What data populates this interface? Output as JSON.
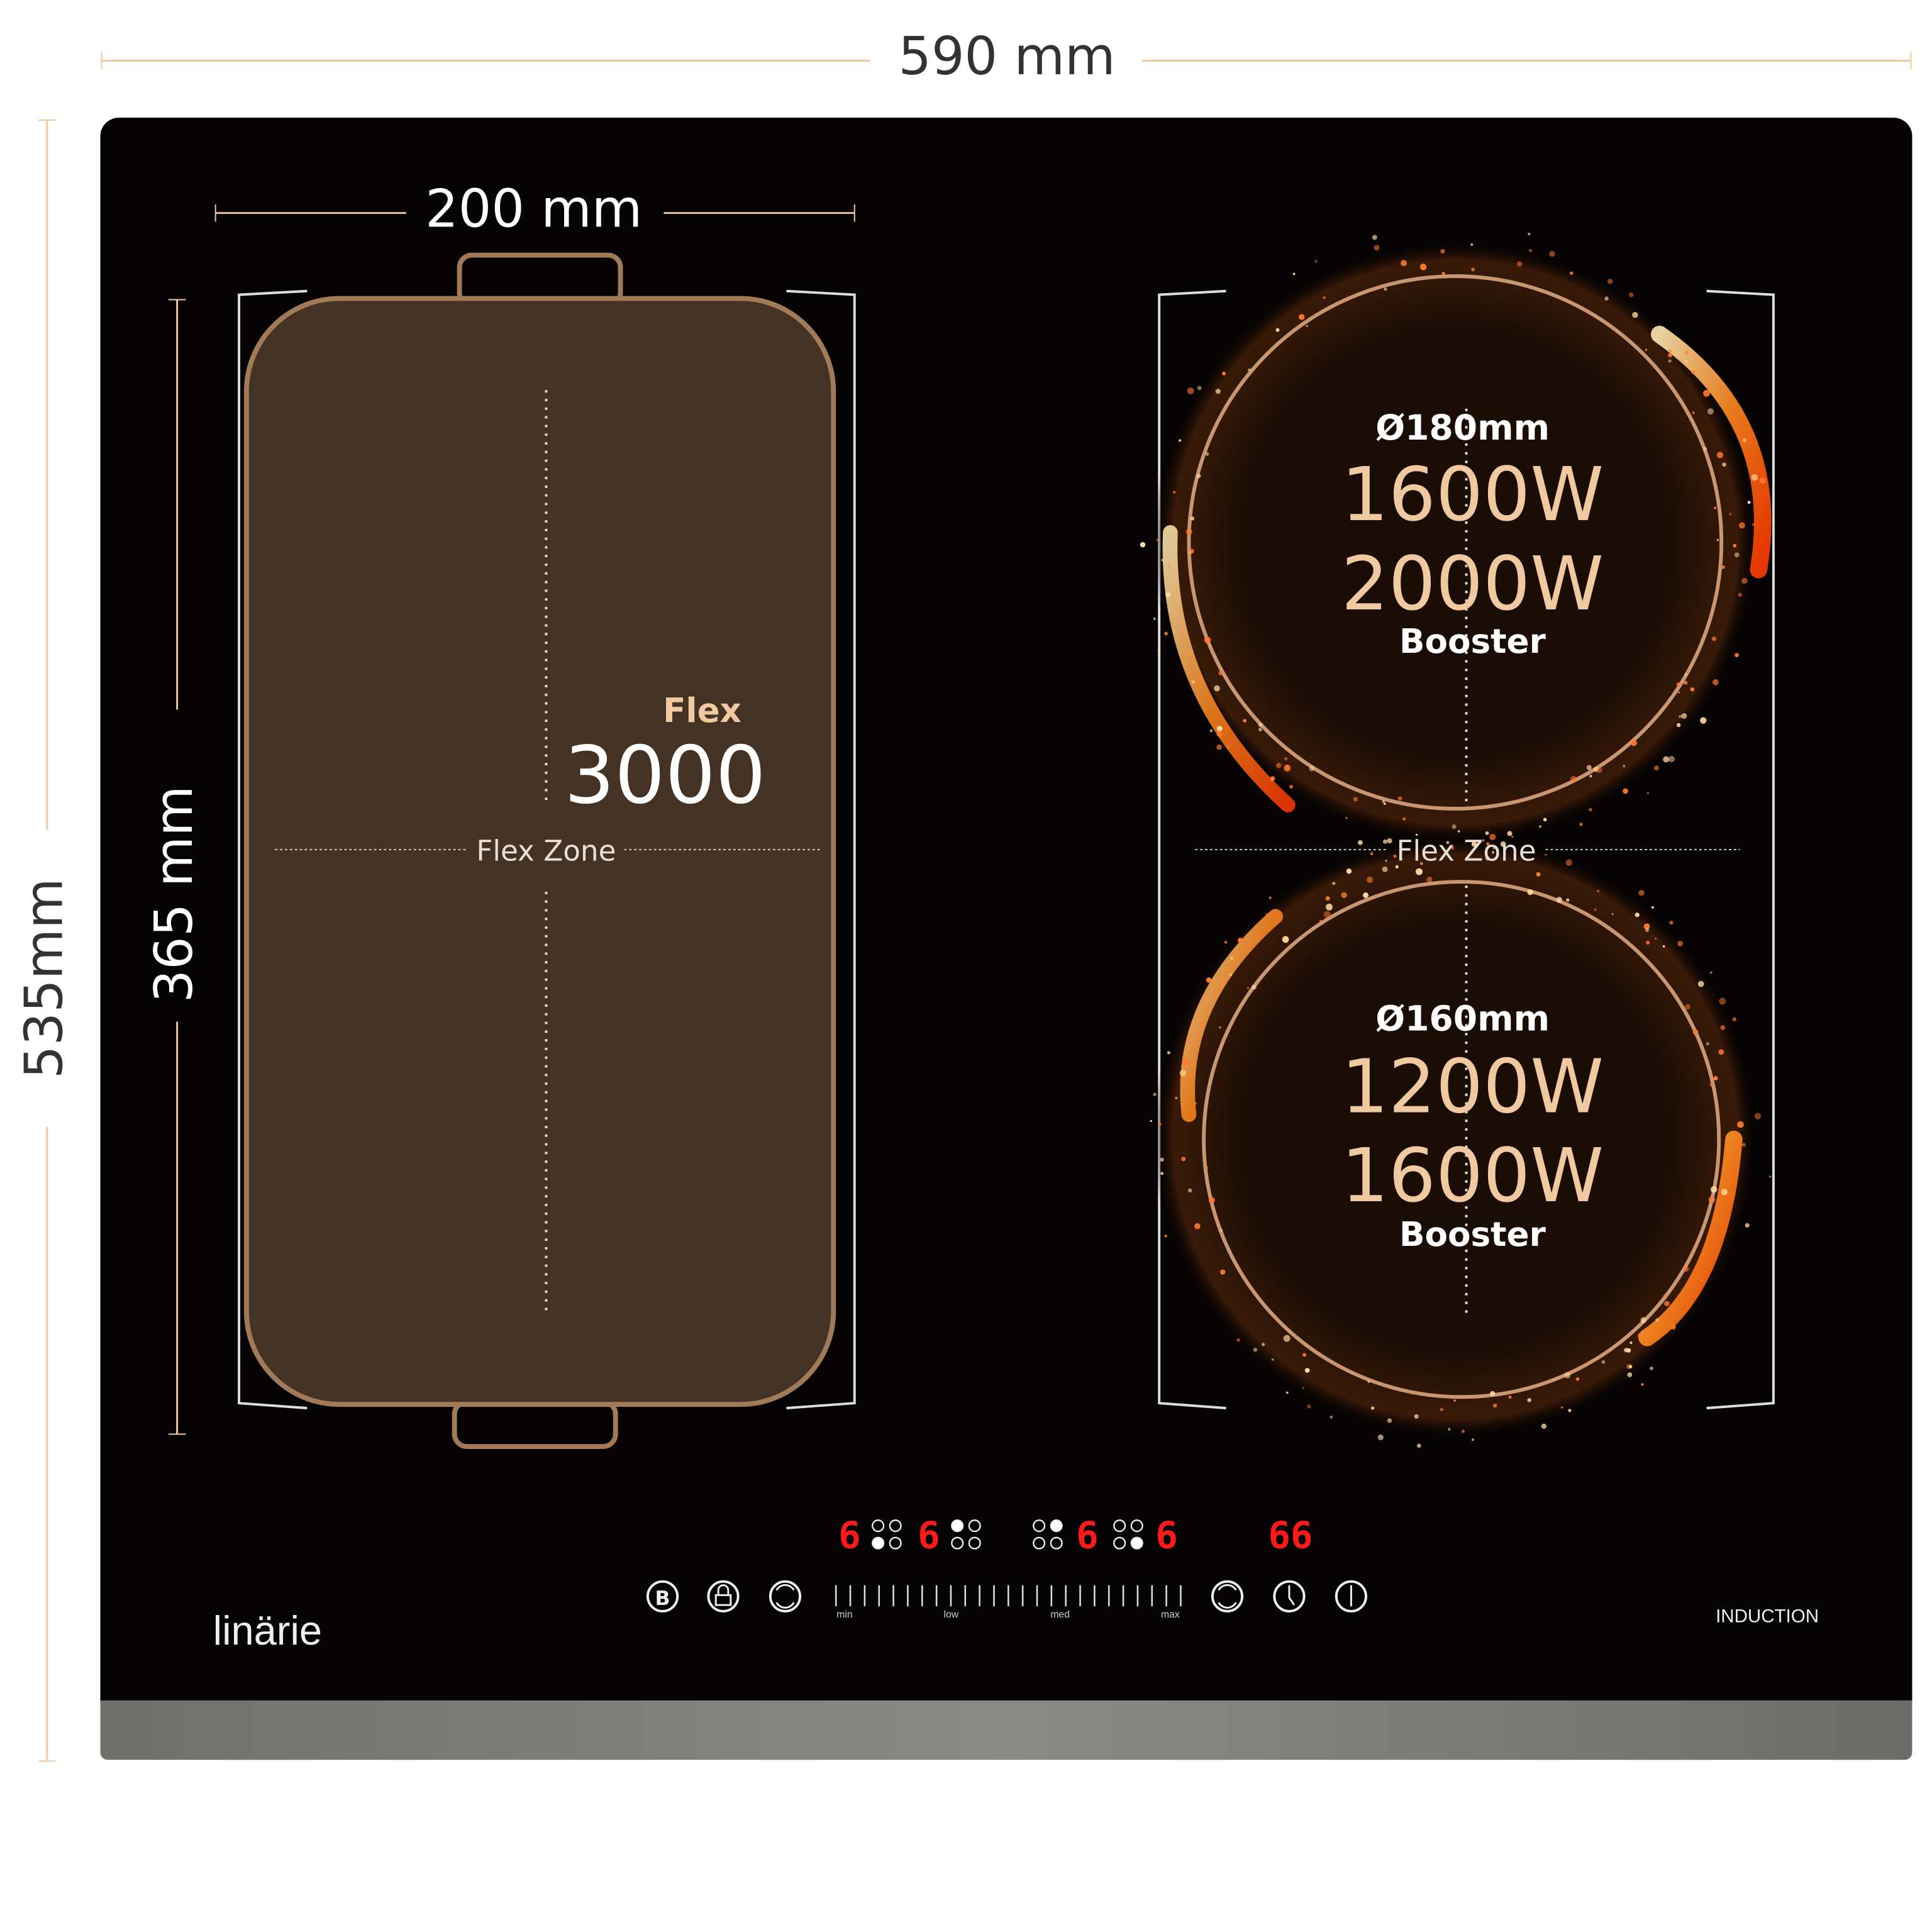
{
  "dimensions": {
    "width": "590 mm",
    "height": "535mm",
    "flex_width": "200 mm",
    "flex_height": "365 mm"
  },
  "flex_zone_left": {
    "mode_label": "Flex",
    "power": "3000",
    "zone_label": "Flex Zone"
  },
  "flex_zone_right": {
    "zone_label": "Flex Zone",
    "top_burner": {
      "diameter": "Ø180mm",
      "power": "1600W",
      "booster_power": "2000W",
      "booster_label": "Booster"
    },
    "bottom_burner": {
      "diameter": "Ø160mm",
      "power": "1200W",
      "booster_power": "1600W",
      "booster_label": "Booster"
    }
  },
  "control_panel": {
    "displays": [
      "6",
      "6",
      "6",
      "6"
    ],
    "timer_display": "66",
    "slider_labels": {
      "min": "min",
      "low": "low",
      "med": "med",
      "max": "max"
    },
    "buttons": [
      "booster-icon",
      "lock-icon",
      "flex-icon",
      "flex-icon",
      "timer-icon",
      "power-icon"
    ],
    "booster_letter": "B"
  },
  "brand": "linärie",
  "product_type": "INDUCTION",
  "colors": {
    "accent": "#f0c9a0",
    "glass": "#050303",
    "pan": "#443324",
    "pan_border": "#a27a58",
    "display_red": "#ff1a1a",
    "trim": "#7a7a78"
  }
}
